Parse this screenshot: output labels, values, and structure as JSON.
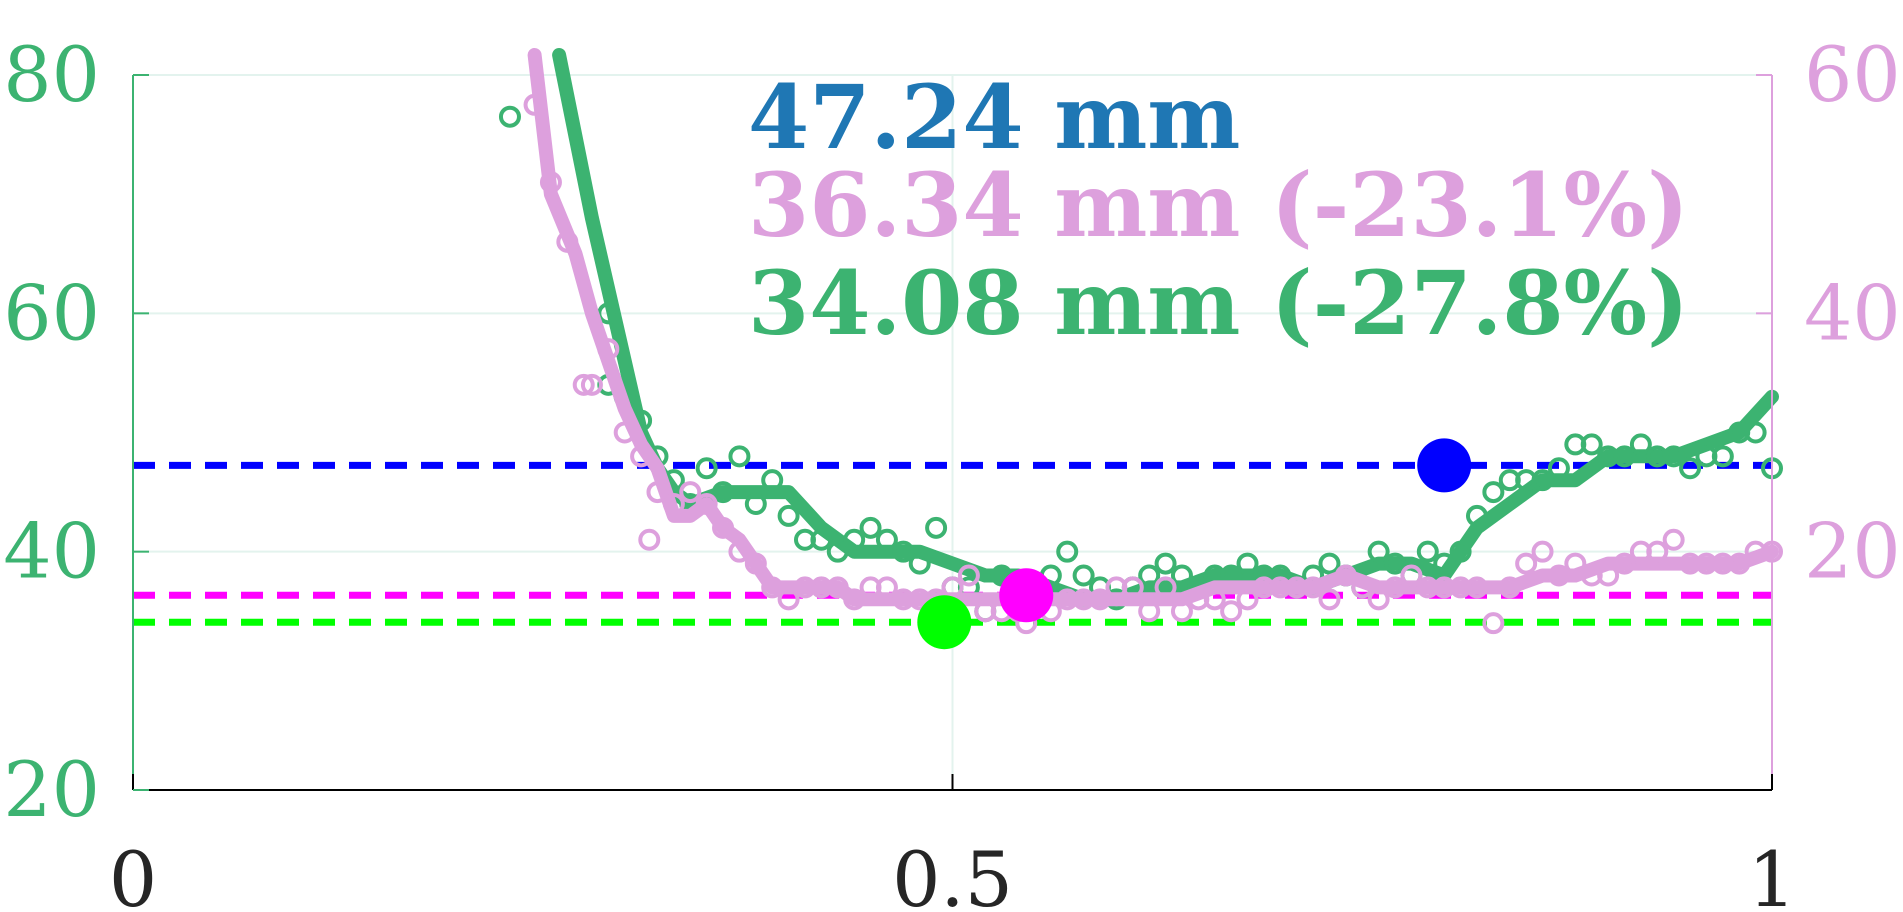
{
  "colors": {
    "green": "#3cb371",
    "pink": "#dda0dd",
    "blue": "#1f77b4",
    "ref_blue": "#0000ff",
    "ref_magenta": "#ff00ff",
    "ref_green": "#00ff00",
    "grid": "#e3f3ee",
    "axis": "#000000",
    "text_dark": "#262626"
  },
  "chart_data": {
    "type": "line",
    "xlim": [
      0,
      1
    ],
    "ylim_left": [
      20,
      80
    ],
    "ylim_right": [
      0,
      60
    ],
    "x_ticks": [
      0,
      0.5,
      1
    ],
    "x_tick_labels": [
      "0",
      "0.5",
      "1"
    ],
    "y_left_ticks": [
      20,
      40,
      60,
      80
    ],
    "y_left_tick_labels": [
      "20",
      "40",
      "60",
      "80"
    ],
    "y_right_ticks": [
      20,
      40,
      60
    ],
    "y_right_tick_labels": [
      "20",
      "40",
      "60"
    ],
    "grid": true,
    "annotations": [
      {
        "text": "47.24 mm",
        "color_key": "blue"
      },
      {
        "text": "36.34 mm (-23.1%)",
        "color_key": "pink"
      },
      {
        "text": "34.08 mm (-27.8%)",
        "color_key": "green"
      }
    ],
    "reference_lines": [
      {
        "y": 47.24,
        "color_key": "ref_blue"
      },
      {
        "y": 36.34,
        "color_key": "ref_magenta"
      },
      {
        "y": 34.08,
        "color_key": "ref_green"
      }
    ],
    "markers": [
      {
        "x": 0.8,
        "y": 47.24,
        "color_key": "ref_blue"
      },
      {
        "x": 0.545,
        "y": 36.34,
        "color_key": "ref_magenta"
      },
      {
        "x": 0.495,
        "y": 34.08,
        "color_key": "ref_green"
      }
    ],
    "series": [
      {
        "axis": "left",
        "color_key": "green",
        "line": [
          [
            0.26,
            82
          ],
          [
            0.28,
            68
          ],
          [
            0.3,
            56
          ],
          [
            0.31,
            50
          ],
          [
            0.32,
            47
          ],
          [
            0.33,
            45
          ],
          [
            0.34,
            44
          ],
          [
            0.36,
            45
          ],
          [
            0.38,
            45
          ],
          [
            0.4,
            45
          ],
          [
            0.42,
            42
          ],
          [
            0.44,
            40
          ],
          [
            0.46,
            40
          ],
          [
            0.48,
            40
          ],
          [
            0.5,
            39
          ],
          [
            0.52,
            38
          ],
          [
            0.54,
            38
          ],
          [
            0.56,
            37
          ],
          [
            0.58,
            36
          ],
          [
            0.6,
            36
          ],
          [
            0.62,
            37
          ],
          [
            0.64,
            37
          ],
          [
            0.66,
            38
          ],
          [
            0.68,
            38
          ],
          [
            0.7,
            38
          ],
          [
            0.72,
            37
          ],
          [
            0.74,
            38
          ],
          [
            0.76,
            39
          ],
          [
            0.78,
            39
          ],
          [
            0.8,
            38
          ],
          [
            0.82,
            42
          ],
          [
            0.84,
            44
          ],
          [
            0.86,
            46
          ],
          [
            0.88,
            46
          ],
          [
            0.9,
            48
          ],
          [
            0.92,
            48
          ],
          [
            0.94,
            48
          ],
          [
            0.96,
            49
          ],
          [
            0.98,
            50
          ],
          [
            1.0,
            53
          ]
        ],
        "points": [
          [
            0.23,
            76.5
          ],
          [
            0.29,
            60
          ],
          [
            0.29,
            54
          ],
          [
            0.3,
            53
          ],
          [
            0.31,
            51
          ],
          [
            0.32,
            48
          ],
          [
            0.33,
            46
          ],
          [
            0.34,
            44
          ],
          [
            0.35,
            47
          ],
          [
            0.36,
            45
          ],
          [
            0.37,
            48
          ],
          [
            0.38,
            44
          ],
          [
            0.39,
            46
          ],
          [
            0.4,
            43
          ],
          [
            0.41,
            41
          ],
          [
            0.42,
            41
          ],
          [
            0.43,
            40
          ],
          [
            0.44,
            41
          ],
          [
            0.45,
            42
          ],
          [
            0.46,
            41
          ],
          [
            0.47,
            40
          ],
          [
            0.48,
            39
          ],
          [
            0.49,
            42
          ],
          [
            0.5,
            37
          ],
          [
            0.51,
            37
          ],
          [
            0.52,
            35
          ],
          [
            0.53,
            38
          ],
          [
            0.54,
            36
          ],
          [
            0.55,
            36
          ],
          [
            0.56,
            38
          ],
          [
            0.57,
            40
          ],
          [
            0.58,
            38
          ],
          [
            0.59,
            37
          ],
          [
            0.6,
            36
          ],
          [
            0.61,
            37
          ],
          [
            0.62,
            38
          ],
          [
            0.63,
            39
          ],
          [
            0.64,
            38
          ],
          [
            0.65,
            37
          ],
          [
            0.66,
            38
          ],
          [
            0.67,
            38
          ],
          [
            0.68,
            39
          ],
          [
            0.69,
            38
          ],
          [
            0.7,
            38
          ],
          [
            0.71,
            37
          ],
          [
            0.72,
            38
          ],
          [
            0.73,
            39
          ],
          [
            0.74,
            38
          ],
          [
            0.75,
            37
          ],
          [
            0.76,
            40
          ],
          [
            0.77,
            39
          ],
          [
            0.78,
            38
          ],
          [
            0.79,
            40
          ],
          [
            0.8,
            39
          ],
          [
            0.81,
            40
          ],
          [
            0.82,
            43
          ],
          [
            0.83,
            45
          ],
          [
            0.84,
            46
          ],
          [
            0.85,
            46
          ],
          [
            0.86,
            46
          ],
          [
            0.87,
            47
          ],
          [
            0.88,
            49
          ],
          [
            0.89,
            49
          ],
          [
            0.9,
            48
          ],
          [
            0.91,
            48
          ],
          [
            0.92,
            49
          ],
          [
            0.93,
            48
          ],
          [
            0.94,
            48
          ],
          [
            0.95,
            47
          ],
          [
            0.96,
            48
          ],
          [
            0.97,
            48
          ],
          [
            0.98,
            50
          ],
          [
            0.99,
            50
          ],
          [
            1.0,
            47
          ]
        ]
      },
      {
        "axis": "right",
        "color_key": "pink",
        "line": [
          [
            0.245,
            62
          ],
          [
            0.255,
            50
          ],
          [
            0.27,
            45
          ],
          [
            0.28,
            40
          ],
          [
            0.29,
            36
          ],
          [
            0.3,
            32
          ],
          [
            0.31,
            29
          ],
          [
            0.32,
            27
          ],
          [
            0.33,
            23
          ],
          [
            0.34,
            23
          ],
          [
            0.35,
            24
          ],
          [
            0.36,
            22
          ],
          [
            0.37,
            21
          ],
          [
            0.38,
            19
          ],
          [
            0.39,
            17
          ],
          [
            0.4,
            17
          ],
          [
            0.41,
            17
          ],
          [
            0.42,
            17
          ],
          [
            0.43,
            17
          ],
          [
            0.44,
            16
          ],
          [
            0.45,
            16
          ],
          [
            0.46,
            16
          ],
          [
            0.47,
            16
          ],
          [
            0.48,
            16
          ],
          [
            0.5,
            16
          ],
          [
            0.52,
            16
          ],
          [
            0.54,
            16
          ],
          [
            0.56,
            16
          ],
          [
            0.58,
            16
          ],
          [
            0.6,
            16
          ],
          [
            0.62,
            16
          ],
          [
            0.64,
            16
          ],
          [
            0.66,
            17
          ],
          [
            0.68,
            17
          ],
          [
            0.7,
            17
          ],
          [
            0.72,
            17
          ],
          [
            0.74,
            18
          ],
          [
            0.76,
            17
          ],
          [
            0.78,
            17
          ],
          [
            0.8,
            17
          ],
          [
            0.82,
            17
          ],
          [
            0.84,
            17
          ],
          [
            0.86,
            18
          ],
          [
            0.88,
            18
          ],
          [
            0.9,
            19
          ],
          [
            0.92,
            19
          ],
          [
            0.94,
            19
          ],
          [
            0.96,
            19
          ],
          [
            0.98,
            19
          ],
          [
            1.0,
            20
          ]
        ],
        "points": [
          [
            0.245,
            57.5
          ],
          [
            0.255,
            51
          ],
          [
            0.265,
            46
          ],
          [
            0.275,
            34
          ],
          [
            0.28,
            34
          ],
          [
            0.29,
            37
          ],
          [
            0.3,
            30
          ],
          [
            0.31,
            28
          ],
          [
            0.315,
            21
          ],
          [
            0.32,
            25
          ],
          [
            0.33,
            24
          ],
          [
            0.34,
            25
          ],
          [
            0.35,
            24
          ],
          [
            0.36,
            22
          ],
          [
            0.37,
            20
          ],
          [
            0.38,
            19
          ],
          [
            0.39,
            17
          ],
          [
            0.4,
            16
          ],
          [
            0.41,
            17
          ],
          [
            0.42,
            17
          ],
          [
            0.43,
            17
          ],
          [
            0.44,
            16
          ],
          [
            0.45,
            17
          ],
          [
            0.46,
            17
          ],
          [
            0.47,
            16
          ],
          [
            0.48,
            16
          ],
          [
            0.49,
            16
          ],
          [
            0.5,
            17
          ],
          [
            0.51,
            18
          ],
          [
            0.52,
            15
          ],
          [
            0.53,
            15
          ],
          [
            0.54,
            15
          ],
          [
            0.545,
            14
          ],
          [
            0.56,
            15
          ],
          [
            0.57,
            16
          ],
          [
            0.58,
            16
          ],
          [
            0.59,
            16
          ],
          [
            0.6,
            17
          ],
          [
            0.61,
            17
          ],
          [
            0.62,
            15
          ],
          [
            0.63,
            17
          ],
          [
            0.64,
            15
          ],
          [
            0.65,
            16
          ],
          [
            0.66,
            16
          ],
          [
            0.67,
            15
          ],
          [
            0.68,
            16
          ],
          [
            0.69,
            17
          ],
          [
            0.7,
            17
          ],
          [
            0.71,
            17
          ],
          [
            0.72,
            17
          ],
          [
            0.73,
            16
          ],
          [
            0.74,
            18
          ],
          [
            0.75,
            17
          ],
          [
            0.76,
            16
          ],
          [
            0.77,
            17
          ],
          [
            0.78,
            18
          ],
          [
            0.79,
            17
          ],
          [
            0.8,
            17
          ],
          [
            0.81,
            17
          ],
          [
            0.82,
            17
          ],
          [
            0.83,
            14
          ],
          [
            0.84,
            17
          ],
          [
            0.85,
            19
          ],
          [
            0.86,
            20
          ],
          [
            0.87,
            18
          ],
          [
            0.88,
            19
          ],
          [
            0.89,
            18
          ],
          [
            0.9,
            18
          ],
          [
            0.91,
            19
          ],
          [
            0.92,
            20
          ],
          [
            0.93,
            20
          ],
          [
            0.94,
            21
          ],
          [
            0.95,
            19
          ],
          [
            0.96,
            19
          ],
          [
            0.97,
            19
          ],
          [
            0.98,
            19
          ],
          [
            0.99,
            20
          ],
          [
            1.0,
            20
          ]
        ]
      }
    ]
  }
}
